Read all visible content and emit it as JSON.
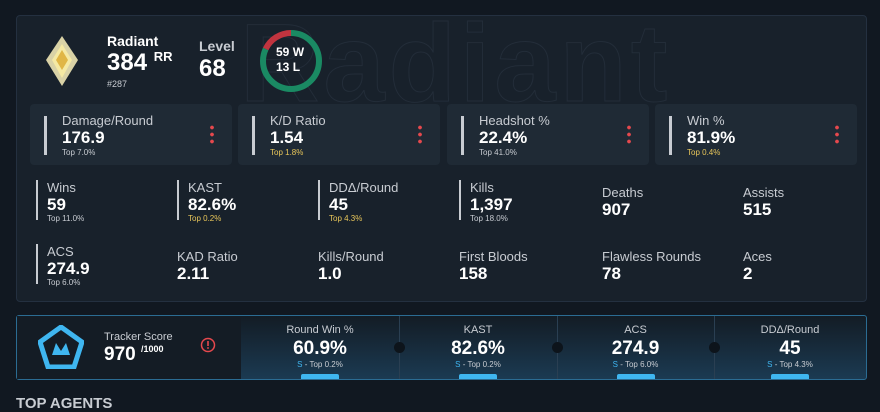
{
  "header": {
    "rank": "Radiant",
    "rr": "384",
    "rr_unit": "RR",
    "rank_number": "#287",
    "level_label": "Level",
    "level": "68",
    "record": {
      "wins": 59,
      "wins_unit": "W",
      "losses": 13,
      "losses_unit": "L",
      "wins_color": "#1a8a63",
      "losses_color": "#c0343f"
    }
  },
  "top_stats": [
    {
      "label": "Damage/Round",
      "value": "176.9",
      "rank": "Top 7.0%",
      "rank_color": "#c8ccd2"
    },
    {
      "label": "K/D Ratio",
      "value": "1.54",
      "rank": "Top 1.8%",
      "rank_color": "#e8c65a"
    },
    {
      "label": "Headshot %",
      "value": "22.4%",
      "rank": "Top 41.0%",
      "rank_color": "#c8ccd2"
    },
    {
      "label": "Win %",
      "value": "81.9%",
      "rank": "Top 0.4%",
      "rank_color": "#e8c65a"
    }
  ],
  "stats": [
    {
      "label": "Wins",
      "value": "59",
      "rank": "Top 11.0%",
      "rank_color": "#c8ccd2"
    },
    {
      "label": "KAST",
      "value": "82.6%",
      "rank": "Top 0.2%",
      "rank_color": "#e8c65a"
    },
    {
      "label": "DDΔ/Round",
      "value": "45",
      "rank": "Top 4.3%",
      "rank_color": "#e8c65a"
    },
    {
      "label": "Kills",
      "value": "1,397",
      "rank": "Top 18.0%",
      "rank_color": "#c8ccd2"
    },
    {
      "label": "Deaths",
      "value": "907"
    },
    {
      "label": "Assists",
      "value": "515"
    },
    {
      "label": "ACS",
      "value": "274.9",
      "rank": "Top 6.0%",
      "rank_color": "#c8ccd2"
    },
    {
      "label": "KAD Ratio",
      "value": "2.11"
    },
    {
      "label": "Kills/Round",
      "value": "1.0"
    },
    {
      "label": "First Bloods",
      "value": "158"
    },
    {
      "label": "Flawless Rounds",
      "value": "78"
    },
    {
      "label": "Aces",
      "value": "2"
    }
  ],
  "tracker": {
    "label": "Tracker Score",
    "score": "970",
    "max": "/1000"
  },
  "tracker_stats": [
    {
      "label": "Round Win %",
      "value": "60.9%",
      "grade": "S",
      "rank": "- Top 0.2%"
    },
    {
      "label": "KAST",
      "value": "82.6%",
      "grade": "S",
      "rank": "- Top 0.2%"
    },
    {
      "label": "ACS",
      "value": "274.9",
      "grade": "S",
      "rank": "- Top 6.0%"
    },
    {
      "label": "DDΔ/Round",
      "value": "45",
      "grade": "S",
      "rank": "- Top 4.3%"
    }
  ],
  "next_section": "TOP AGENTS"
}
